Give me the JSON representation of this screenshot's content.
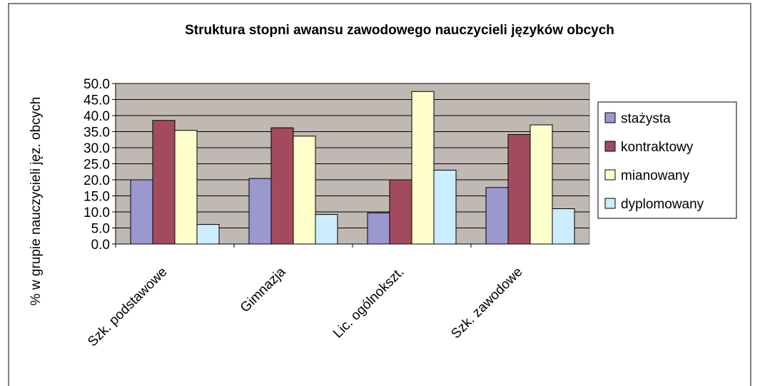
{
  "chart_data": {
    "type": "bar",
    "title": "Struktura stopni awansu zawodowego nauczycieli języków obcych",
    "y_label": "% w grupie nauczycieli jęz. obcych",
    "categories": [
      "Szk. podstawowe",
      "Gimnazja",
      "Lic. ogólnokszt.",
      "Szk. zawodowe"
    ],
    "series": [
      {
        "name": "stażysta",
        "color": "#9b97cf",
        "values": [
          20.0,
          20.4,
          9.7,
          17.6
        ]
      },
      {
        "name": "kontraktowy",
        "color": "#a34b5e",
        "values": [
          38.5,
          36.2,
          20.0,
          34.1
        ]
      },
      {
        "name": "mianowany",
        "color": "#ffffcc",
        "values": [
          35.4,
          33.6,
          47.5,
          37.1
        ]
      },
      {
        "name": "dyplomowany",
        "color": "#ccecff",
        "values": [
          6.1,
          9.2,
          23.0,
          11.0
        ]
      }
    ],
    "ylim": [
      0,
      50
    ],
    "yticks": [
      {
        "value": 0,
        "label": "0.0"
      },
      {
        "value": 5,
        "label": "5.0"
      },
      {
        "value": 10,
        "label": "10.0"
      },
      {
        "value": 15,
        "label": "15.0"
      },
      {
        "value": 20,
        "label": "20.0"
      },
      {
        "value": 25,
        "label": "25.0"
      },
      {
        "value": 30,
        "label": "30.0"
      },
      {
        "value": 35,
        "label": "35.0"
      },
      {
        "value": 40,
        "label": "40.0"
      },
      {
        "value": 45,
        "label": "45.0"
      },
      {
        "value": 50,
        "label": "50.0"
      }
    ],
    "grid": true,
    "legend": "right"
  }
}
